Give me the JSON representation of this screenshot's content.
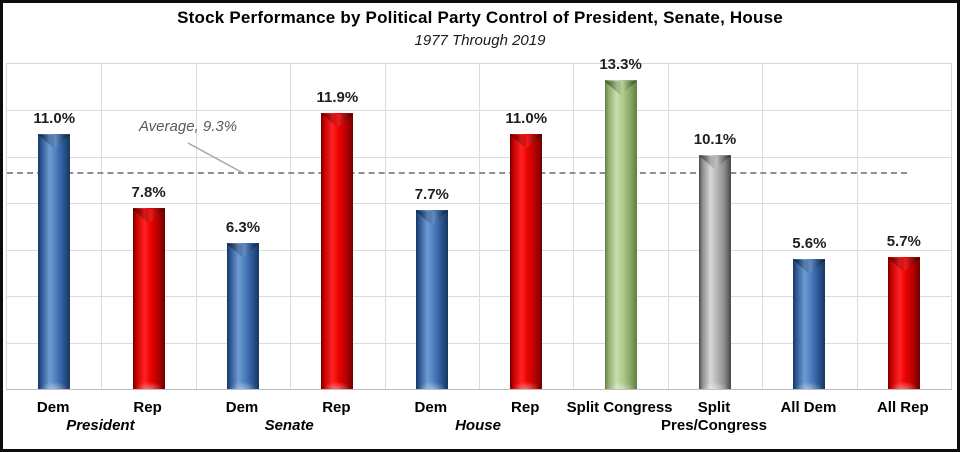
{
  "chart_data": {
    "type": "bar",
    "title": "Stock Performance by Political Party Control of President, Senate, House",
    "subtitle": "1977 Through 2019",
    "ylim": [
      0,
      14
    ],
    "grid_step": 2,
    "grid": "both",
    "legend": "none",
    "ylabel": "",
    "xlabel": "",
    "bars": [
      {
        "group": "President",
        "label": "Dem",
        "value": 11.0,
        "display": "11.0%",
        "color": "blue"
      },
      {
        "group": "President",
        "label": "Rep",
        "value": 7.8,
        "display": "7.8%",
        "color": "red"
      },
      {
        "group": "Senate",
        "label": "Dem",
        "value": 6.3,
        "display": "6.3%",
        "color": "blue"
      },
      {
        "group": "Senate",
        "label": "Rep",
        "value": 11.9,
        "display": "11.9%",
        "color": "red"
      },
      {
        "group": "House",
        "label": "Dem",
        "value": 7.7,
        "display": "7.7%",
        "color": "blue"
      },
      {
        "group": "House",
        "label": "Rep",
        "value": 11.0,
        "display": "11.0%",
        "color": "red"
      },
      {
        "label": "Split Congress",
        "value": 13.3,
        "display": "13.3%",
        "color": "green"
      },
      {
        "label": "Split",
        "label2": "Pres/Congress",
        "value": 10.1,
        "display": "10.1%",
        "color": "gray"
      },
      {
        "label": "All Dem",
        "value": 5.6,
        "display": "5.6%",
        "color": "blue"
      },
      {
        "label": "All Rep",
        "value": 5.7,
        "display": "5.7%",
        "color": "red"
      }
    ],
    "group_labels": [
      {
        "text": "President",
        "boundary": 1
      },
      {
        "text": "Senate",
        "boundary": 3
      },
      {
        "text": "House",
        "boundary": 5
      }
    ],
    "average": {
      "label": "Average, 9.3%",
      "value": 9.3
    },
    "colors": {
      "blue": "#3465a4",
      "red": "#dd0000",
      "green": "#a3c084",
      "gray": "#a0a0a0",
      "average_line": "#8f8f8f",
      "grid": "#dcdcdc"
    }
  }
}
